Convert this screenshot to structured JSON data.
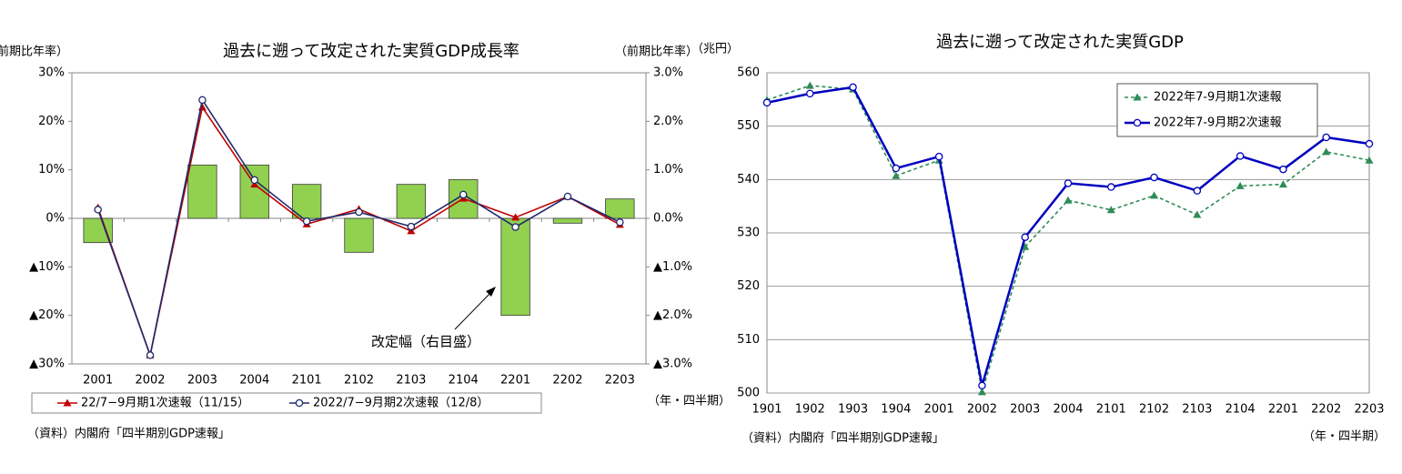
{
  "chart_data": [
    {
      "type": "combo",
      "title": "過去に遡って改定された実質GDP成長率",
      "ylabel": "（前期比年率）",
      "y2label": "（前期比年率）",
      "xlabel": "（年・四半期）",
      "source": "（資料）内閣府「四半期別GDP速報」",
      "annotation": "改定幅（右目盛）",
      "categories": [
        "2001",
        "2002",
        "2003",
        "2004",
        "2101",
        "2102",
        "2103",
        "2104",
        "2201",
        "2202",
        "2203"
      ],
      "series": [
        {
          "type": "bar",
          "axis": "y2",
          "color": "#92d050",
          "values": [
            -0.5,
            0,
            1.1,
            1.1,
            0.7,
            -0.7,
            0.7,
            0.8,
            -2.0,
            -0.1,
            0.4
          ]
        },
        {
          "type": "line",
          "name": "22/7−9月期1次速報（11/15）",
          "color": "#c00000",
          "marker": "triangle",
          "values": [
            2.2,
            -28.2,
            22.9,
            7.0,
            -1.2,
            1.9,
            -2.6,
            4.1,
            0.2,
            4.5,
            -1.3
          ]
        },
        {
          "type": "line",
          "name": "2022/7−9月期2次速報（12/8）",
          "color": "#1f2a6e",
          "marker": "circle",
          "values": [
            1.8,
            -28.2,
            24.4,
            7.9,
            -0.6,
            1.3,
            -1.7,
            4.9,
            -1.8,
            4.5,
            -0.8
          ]
        }
      ],
      "ylim": [
        -30,
        30
      ],
      "yticks": [
        {
          "value": -30,
          "label": "▲30%"
        },
        {
          "value": -20,
          "label": "▲20%"
        },
        {
          "value": -10,
          "label": "▲10%"
        },
        {
          "value": 0,
          "label": "0%"
        },
        {
          "value": 10,
          "label": "10%"
        },
        {
          "value": 20,
          "label": "20%"
        },
        {
          "value": 30,
          "label": "30%"
        }
      ],
      "y2lim": [
        -3,
        3
      ],
      "y2ticks": [
        {
          "value": -3,
          "label": "▲3.0%"
        },
        {
          "value": -2,
          "label": "▲2.0%"
        },
        {
          "value": -1,
          "label": "▲1.0%"
        },
        {
          "value": 0,
          "label": "0.0%"
        },
        {
          "value": 1,
          "label": "1.0%"
        },
        {
          "value": 2,
          "label": "2.0%"
        },
        {
          "value": 3,
          "label": "3.0%"
        }
      ],
      "grid": false,
      "legend": "bottom"
    },
    {
      "type": "line",
      "title": "過去に遡って改定された実質GDP",
      "ylabel": "（兆円）",
      "xlabel": "（年・四半期）",
      "source": "（資料）内閣府「四半期別GDP速報」",
      "categories": [
        "1901",
        "1902",
        "1903",
        "1904",
        "2001",
        "2002",
        "2003",
        "2004",
        "2101",
        "2102",
        "2103",
        "2104",
        "2201",
        "2202",
        "2203"
      ],
      "series": [
        {
          "name": "2022年7-9月期1次速報",
          "color": "#2e8b57",
          "marker": "triangle",
          "dashed": true,
          "values": [
            554.9,
            557.6,
            556.9,
            540.7,
            543.6,
            500.2,
            527.4,
            536.1,
            534.3,
            537.0,
            533.4,
            538.8,
            539.1,
            545.2,
            543.6
          ]
        },
        {
          "name": "2022年7-9月期2次速報",
          "color": "#0000c0",
          "marker": "circle",
          "dashed": false,
          "values": [
            554.4,
            556.1,
            557.3,
            542.1,
            544.3,
            501.4,
            529.2,
            539.3,
            538.6,
            540.4,
            537.9,
            544.4,
            541.9,
            547.9,
            546.7
          ]
        }
      ],
      "ylim": [
        500,
        560
      ],
      "yticks": [
        500,
        510,
        520,
        530,
        540,
        550,
        560
      ],
      "grid": true,
      "legend": "upper right"
    }
  ]
}
